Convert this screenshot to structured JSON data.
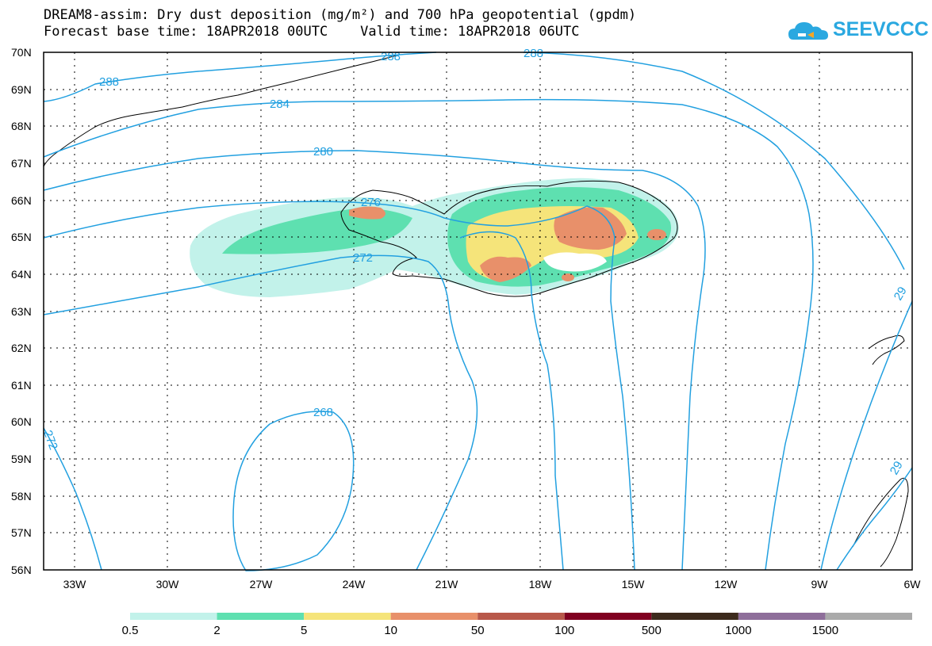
{
  "title": {
    "line1": "DREAM8-assim: Dry dust deposition (mg/m²) and 700 hPa geopotential (gpdm)",
    "line2": "Forecast base time: 18APR2018 00UTC    Valid time: 18APR2018 06UTC"
  },
  "logo": {
    "text": "SEEVCCC",
    "icon": "cloud-logo-icon",
    "color": "#2aa8e0"
  },
  "map": {
    "lon_range": [
      -34,
      -6
    ],
    "lat_range": [
      56,
      70
    ],
    "lat_labels": [
      "56N",
      "57N",
      "58N",
      "59N",
      "60N",
      "61N",
      "62N",
      "63N",
      "64N",
      "65N",
      "66N",
      "67N",
      "68N",
      "69N",
      "70N"
    ],
    "lon_labels": [
      "33W",
      "30W",
      "27W",
      "24W",
      "21W",
      "18W",
      "15W",
      "12W",
      "9W",
      "6W"
    ],
    "contour_color": "#22a0e0",
    "contour_labels": [
      "288",
      "288",
      "288",
      "284",
      "280",
      "276",
      "272",
      "268",
      "272",
      "29",
      "29"
    ]
  },
  "legend": {
    "colors": [
      "#c2f2ea",
      "#5ee0b0",
      "#f5e47a",
      "#e8906a",
      "#b8584a",
      "#800020",
      "#3c2a1c",
      "#8e6e9a",
      "#aaaaaa"
    ],
    "labels": [
      "0.5",
      "2",
      "5",
      "10",
      "50",
      "100",
      "500",
      "1000",
      "1500"
    ]
  }
}
